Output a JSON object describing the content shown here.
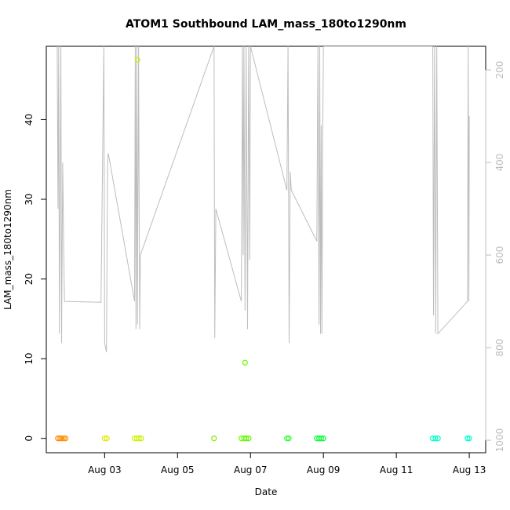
{
  "chart_data": {
    "type": "scatter",
    "title": "ATOM1 Southbound LAM_mass_180to1290nm",
    "xlabel": "Date",
    "ylabel": "LAM_mass_180to1290nm",
    "x_ticks": [
      "Aug 03",
      "Aug 05",
      "Aug 07",
      "Aug 09",
      "Aug 11",
      "Aug 13"
    ],
    "x_range_days": [
      1.4,
      13.45
    ],
    "y_range": [
      -1.8,
      49.2
    ],
    "y_ticks": [
      0,
      10,
      20,
      30,
      40
    ],
    "secondary_y": {
      "label": "",
      "range_top_to_bottom": [
        149,
        1027
      ],
      "ticks": [
        200,
        400,
        600,
        800,
        1000
      ],
      "color": "#bdbdbd"
    },
    "grid": false,
    "legend": "none",
    "points": [
      {
        "x": 1.72,
        "y": 0,
        "color": "#ff7f00"
      },
      {
        "x": 1.78,
        "y": 0,
        "color": "#ff8800"
      },
      {
        "x": 1.83,
        "y": 0,
        "color": "#ff8c00"
      },
      {
        "x": 1.88,
        "y": 0,
        "color": "#ff9100"
      },
      {
        "x": 1.93,
        "y": 0,
        "color": "#ff9500"
      },
      {
        "x": 3.0,
        "y": 0,
        "color": "#e6e600"
      },
      {
        "x": 3.06,
        "y": 0,
        "color": "#e8e800"
      },
      {
        "x": 3.82,
        "y": 0,
        "color": "#ccff00"
      },
      {
        "x": 3.88,
        "y": 0,
        "color": "#d4f000"
      },
      {
        "x": 3.94,
        "y": 0,
        "color": "#ccf500"
      },
      {
        "x": 4.0,
        "y": 0,
        "color": "#c8f000"
      },
      {
        "x": 3.9,
        "y": 47.5,
        "color": "#ccee00"
      },
      {
        "x": 6.0,
        "y": 0,
        "color": "#80ee00"
      },
      {
        "x": 6.75,
        "y": 0,
        "color": "#66ff00"
      },
      {
        "x": 6.82,
        "y": 0,
        "color": "#66ff00"
      },
      {
        "x": 6.88,
        "y": 0,
        "color": "#60f500"
      },
      {
        "x": 6.95,
        "y": 0,
        "color": "#60f500"
      },
      {
        "x": 6.85,
        "y": 9.5,
        "color": "#66ff00"
      },
      {
        "x": 8.0,
        "y": 0,
        "color": "#33ff33"
      },
      {
        "x": 8.05,
        "y": 0,
        "color": "#33ff33"
      },
      {
        "x": 8.82,
        "y": 0,
        "color": "#00ff33"
      },
      {
        "x": 8.88,
        "y": 0,
        "color": "#00ff33"
      },
      {
        "x": 8.94,
        "y": 0,
        "color": "#00ff33"
      },
      {
        "x": 9.0,
        "y": 0,
        "color": "#00ff33"
      },
      {
        "x": 12.0,
        "y": 0,
        "color": "#00ffcc"
      },
      {
        "x": 12.07,
        "y": 0,
        "color": "#00ffcc"
      },
      {
        "x": 12.14,
        "y": 0,
        "color": "#00ffcc"
      },
      {
        "x": 12.95,
        "y": 0,
        "color": "#00ffcc"
      },
      {
        "x": 13.0,
        "y": 0,
        "color": "#00ffcc"
      }
    ],
    "line_series": {
      "color": "#bdbdbd",
      "axis": "secondary",
      "points": [
        [
          1.7,
          149
        ],
        [
          1.72,
          500
        ],
        [
          1.74,
          149
        ],
        [
          1.76,
          770
        ],
        [
          1.8,
          149
        ],
        [
          1.82,
          790
        ],
        [
          1.85,
          400
        ],
        [
          1.88,
          600
        ],
        [
          1.9,
          700
        ],
        [
          2.9,
          702
        ],
        [
          2.98,
          149
        ],
        [
          3.0,
          790
        ],
        [
          3.05,
          810
        ],
        [
          3.08,
          400
        ],
        [
          3.1,
          380
        ],
        [
          3.82,
          700
        ],
        [
          3.84,
          149
        ],
        [
          3.86,
          760
        ],
        [
          3.88,
          149
        ],
        [
          3.9,
          750
        ],
        [
          3.93,
          149
        ],
        [
          3.96,
          760
        ],
        [
          3.98,
          600
        ],
        [
          6.0,
          149
        ],
        [
          6.02,
          780
        ],
        [
          6.05,
          500
        ],
        [
          6.75,
          700
        ],
        [
          6.78,
          149
        ],
        [
          6.8,
          600
        ],
        [
          6.82,
          149
        ],
        [
          6.85,
          720
        ],
        [
          6.88,
          149
        ],
        [
          6.92,
          760
        ],
        [
          6.95,
          149
        ],
        [
          6.98,
          610
        ],
        [
          7.0,
          149
        ],
        [
          8.0,
          460
        ],
        [
          8.03,
          149
        ],
        [
          8.06,
          790
        ],
        [
          8.09,
          420
        ],
        [
          8.12,
          460
        ],
        [
          8.82,
          570
        ],
        [
          8.85,
          149
        ],
        [
          8.88,
          750
        ],
        [
          8.9,
          149
        ],
        [
          8.92,
          770
        ],
        [
          8.94,
          320
        ],
        [
          8.96,
          770
        ],
        [
          8.98,
          340
        ],
        [
          9.0,
          149
        ],
        [
          12.0,
          149
        ],
        [
          12.02,
          730
        ],
        [
          12.05,
          149
        ],
        [
          12.08,
          770
        ],
        [
          12.11,
          149
        ],
        [
          12.14,
          770
        ],
        [
          12.95,
          700
        ],
        [
          12.97,
          149
        ],
        [
          12.99,
          700
        ],
        [
          13.0,
          300
        ]
      ]
    }
  }
}
